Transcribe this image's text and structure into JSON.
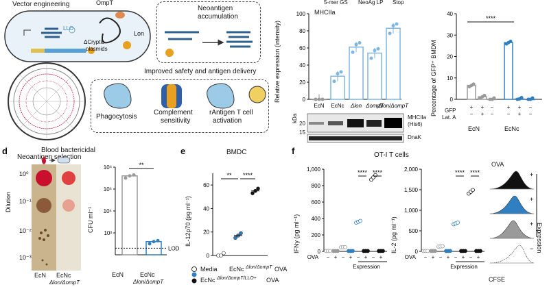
{
  "schematic": {
    "vector_engineering": "Vector engineering",
    "ompt": "OmpT",
    "llo": "LLO",
    "lon": "Lon",
    "cryptic_1": "ΔCryptic",
    "cryptic_2": "plasmids",
    "neoantigen_accumulation_1": "Neoantigen",
    "neoantigen_accumulation_2": "accumulation",
    "improved": "Improved safety and antigen delivery",
    "neoantigen_selection": "Neoantigen selection",
    "phagocytosis": "Phagocytosis",
    "complement_1": "Complement",
    "complement_2": "sensitivity",
    "rantigen_1": "rAntigen T cell",
    "rantigen_2": "activation"
  },
  "panel_b": {
    "legend": [
      "5-mer GS",
      "NeoAg LP",
      "Stop"
    ],
    "subtitle": "MHCIIa",
    "ylabel": "Relative expression (intensity)",
    "yticks": [
      "0",
      "20",
      "40",
      "60",
      "80",
      "100"
    ],
    "blot_kda": "kDa",
    "blot_20": "20",
    "blot_15": "15",
    "blot_mhc": "MHCIIa",
    "blot_his": "(His6)",
    "blot_dnak": "DnaK"
  },
  "panel_c": {
    "ylabel": "Percentage of GFP⁺ BMDM",
    "yticks": [
      "0",
      "10",
      "20",
      "30",
      "40"
    ],
    "sig": "****",
    "gfp": "GFP",
    "lata": "Lat. A",
    "gfp_signs": [
      "+",
      "+",
      "−",
      "+",
      "+",
      "−"
    ],
    "lata_signs": [
      "−",
      "+",
      "−",
      "−",
      "+",
      "−"
    ],
    "group1": "EcN",
    "group2": "EcNc"
  },
  "panel_d": {
    "letter": "d",
    "title": "Blood bactericidal",
    "dilution": "Dilution",
    "dilutions": [
      "10⁰",
      "10⁻¹",
      "10⁻²",
      "10⁻³"
    ],
    "plate_x1": "EcN",
    "plate_x2": "EcNc",
    "plate_x2b": "Δlon/ΔompT",
    "ylabel": "CFU ml⁻¹",
    "yticks": [
      "10⁶",
      "10⁵",
      "10⁴",
      "10³"
    ],
    "sig": "**",
    "lod": "LOD",
    "x1": "EcN",
    "x2": "EcNc",
    "x2b": "Δlon/ΔompT"
  },
  "panel_e": {
    "letter": "e",
    "title": "BMDC",
    "ylabel": "IL-12p70 (pg ml⁻¹)",
    "yticks": [
      "0",
      "20",
      "40",
      "60"
    ],
    "sig1": "**",
    "sig2": "****",
    "legend": [
      "Media",
      "EcNc",
      "Δlon/ΔompT",
      "OVA",
      "EcNc",
      "Δlon/ΔompT/LLO+",
      "OVA"
    ]
  },
  "panel_f": {
    "letter": "f",
    "title": "OT-I T cells",
    "ylabel1": "IFNγ (pg ml⁻¹)",
    "yticks1": [
      "0",
      "200",
      "400",
      "600",
      "800",
      "1,000"
    ],
    "ylabel2": "IL-2 (pg ml⁻¹)",
    "yticks2": [
      "0",
      "500",
      "1,000",
      "1,500",
      "2,000"
    ],
    "sig": "****",
    "ova": "OVA",
    "ova_signs": [
      "−",
      "+",
      "−",
      "+",
      "−",
      "+",
      "−",
      "+"
    ],
    "expression": "Expression",
    "hist_title": "OVA",
    "hist_xlabel": "CFSE",
    "hist_side": "Expression",
    "hist_signs": [
      "+",
      "+",
      "+",
      "−"
    ]
  },
  "chart_data": [
    {
      "type": "bar",
      "panel": "b",
      "categories": [
        "EcN",
        "EcNc",
        "Δlon",
        "ΔompT",
        "Δlon/ΔompT"
      ],
      "values": [
        0,
        27,
        61,
        54,
        83
      ],
      "ylim": [
        0,
        100
      ],
      "ylabel": "Relative expression (intensity)",
      "title": "MHCIIa"
    },
    {
      "type": "bar",
      "panel": "c",
      "groups": [
        "EcN",
        "EcNc Δlon/ΔompT"
      ],
      "conditions": [
        "GFP+ Lat.A−",
        "GFP+ Lat.A+",
        "GFP− Lat.A−"
      ],
      "values": [
        6.5,
        1.2,
        0,
        26.5,
        0.2,
        0
      ],
      "ylim": [
        0,
        40
      ],
      "ylabel": "Percentage of GFP⁺ BMDM"
    },
    {
      "type": "bar",
      "panel": "d",
      "categories": [
        "EcN",
        "EcNc Δlon/ΔompT"
      ],
      "values": [
        400000,
        400
      ],
      "yscale": "log",
      "ylim": [
        100,
        1000000
      ],
      "lod": 200,
      "ylabel": "CFU ml⁻¹"
    },
    {
      "type": "scatter",
      "panel": "e",
      "categories": [
        "Media",
        "EcNc Δlon/ΔompT OVA",
        "EcNc Δlon/ΔompT/LLO+ OVA"
      ],
      "values": [
        0,
        17,
        55
      ],
      "ylim": [
        0,
        70
      ],
      "ylabel": "IL-12p70 (pg ml⁻¹)"
    },
    {
      "type": "bar",
      "panel": "f-ifn",
      "values": [
        5,
        5,
        50,
        5,
        360,
        5,
        900,
        5
      ],
      "ylim": [
        0,
        1000
      ],
      "ylabel": "IFNγ (pg ml⁻¹)"
    },
    {
      "type": "bar",
      "panel": "f-il2",
      "values": [
        10,
        10,
        120,
        10,
        680,
        10,
        1450,
        10
      ],
      "ylim": [
        0,
        2000
      ],
      "ylabel": "IL-2 (pg ml⁻¹)"
    }
  ],
  "colors": {
    "blue": "#2f7fc1",
    "lightblue": "#7fb6e0",
    "grey": "#9a9a9a",
    "dark": "#111111",
    "red": "#c8102e"
  }
}
